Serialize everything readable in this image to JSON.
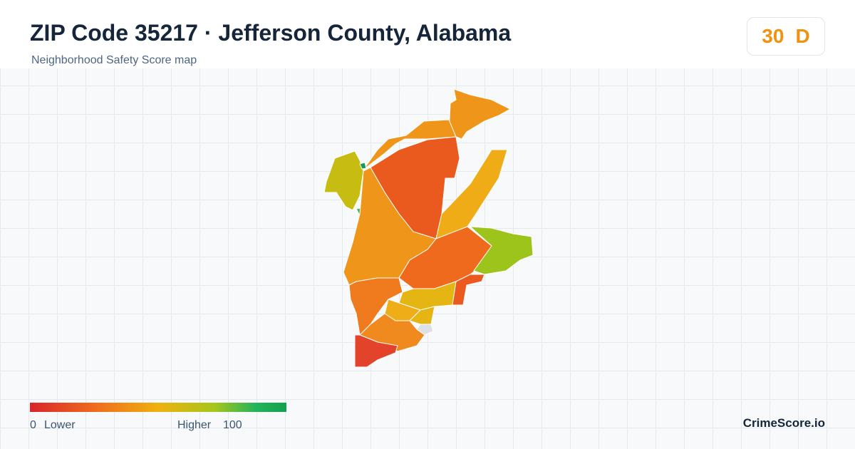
{
  "header": {
    "title": "ZIP Code 35217 · Jefferson County, Alabama",
    "subtitle": "Neighborhood Safety Score map"
  },
  "score": {
    "value": 30,
    "grade": "D"
  },
  "legend": {
    "min": 0,
    "min_label": "Lower",
    "max_label": "Higher",
    "max": 100
  },
  "footer": {
    "brand": "CrimeScore.io"
  }
}
